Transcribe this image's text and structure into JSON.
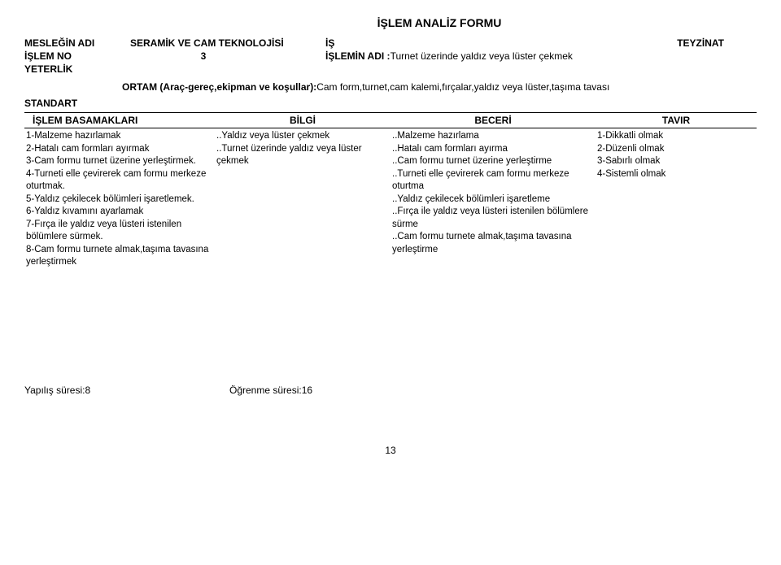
{
  "title": "İŞLEM ANALİZ FORMU",
  "header": {
    "meslegin_adi_label": "MESLEĞİN ADI",
    "meslegin_adi_value": "SERAMİK VE CAM TEKNOLOJİSİ",
    "is_label": "İŞ",
    "is_value": "TEYZİNAT",
    "islem_no_label": "İŞLEM NO",
    "islem_no_value": "3",
    "islemin_adi_label": "İŞLEMİN ADI :",
    "islemin_adi_value": "Turnet üzerinde yaldız veya lüster çekmek",
    "yeterlik_label": "YETERLİK"
  },
  "ortam": {
    "label": "ORTAM (Araç-gereç,ekipman ve koşullar):",
    "text": "Cam form,turnet,cam kalemi,fırçalar,yaldız veya lüster,taşıma tavası"
  },
  "standart_label": "STANDART",
  "columns": {
    "c1": "İŞLEM BASAMAKLARI",
    "c2": "BİLGİ",
    "c3": "BECERİ",
    "c4": "TAVIR"
  },
  "body": {
    "basamaklar": "1-Malzeme hazırlamak\n2-Hatalı cam formları ayırmak\n3-Cam formu turnet üzerine yerleştirmek.\n4-Turneti elle çevirerek cam formu merkeze oturtmak.\n5-Yaldız çekilecek bölümleri işaretlemek.\n6-Yaldız kıvamını ayarlamak\n7-Fırça ile yaldız veya lüsteri istenilen bölümlere sürmek.\n8-Cam formu turnete almak,taşıma tavasına yerleştirmek",
    "bilgi": "..Yaldız veya lüster çekmek\n..Turnet üzerinde yaldız veya lüster çekmek",
    "beceri": "..Malzeme hazırlama\n..Hatalı cam formları ayırma\n..Cam formu turnet üzerine yerleştirme\n..Turneti elle çevirerek cam formu merkeze oturtma\n..Yaldız çekilecek bölümleri işaretleme\n..Fırça ile yaldız veya lüsteri istenilen bölümlere sürme\n..Cam formu turnete almak,taşıma tavasına yerleştirme",
    "tavir": "1-Dikkatli olmak\n2-Düzenli olmak\n3-Sabırlı olmak\n4-Sistemli olmak"
  },
  "footer": {
    "yap": "Yapılış süresi:8",
    "ogr": "Öğrenme süresi:16"
  },
  "page": "13"
}
